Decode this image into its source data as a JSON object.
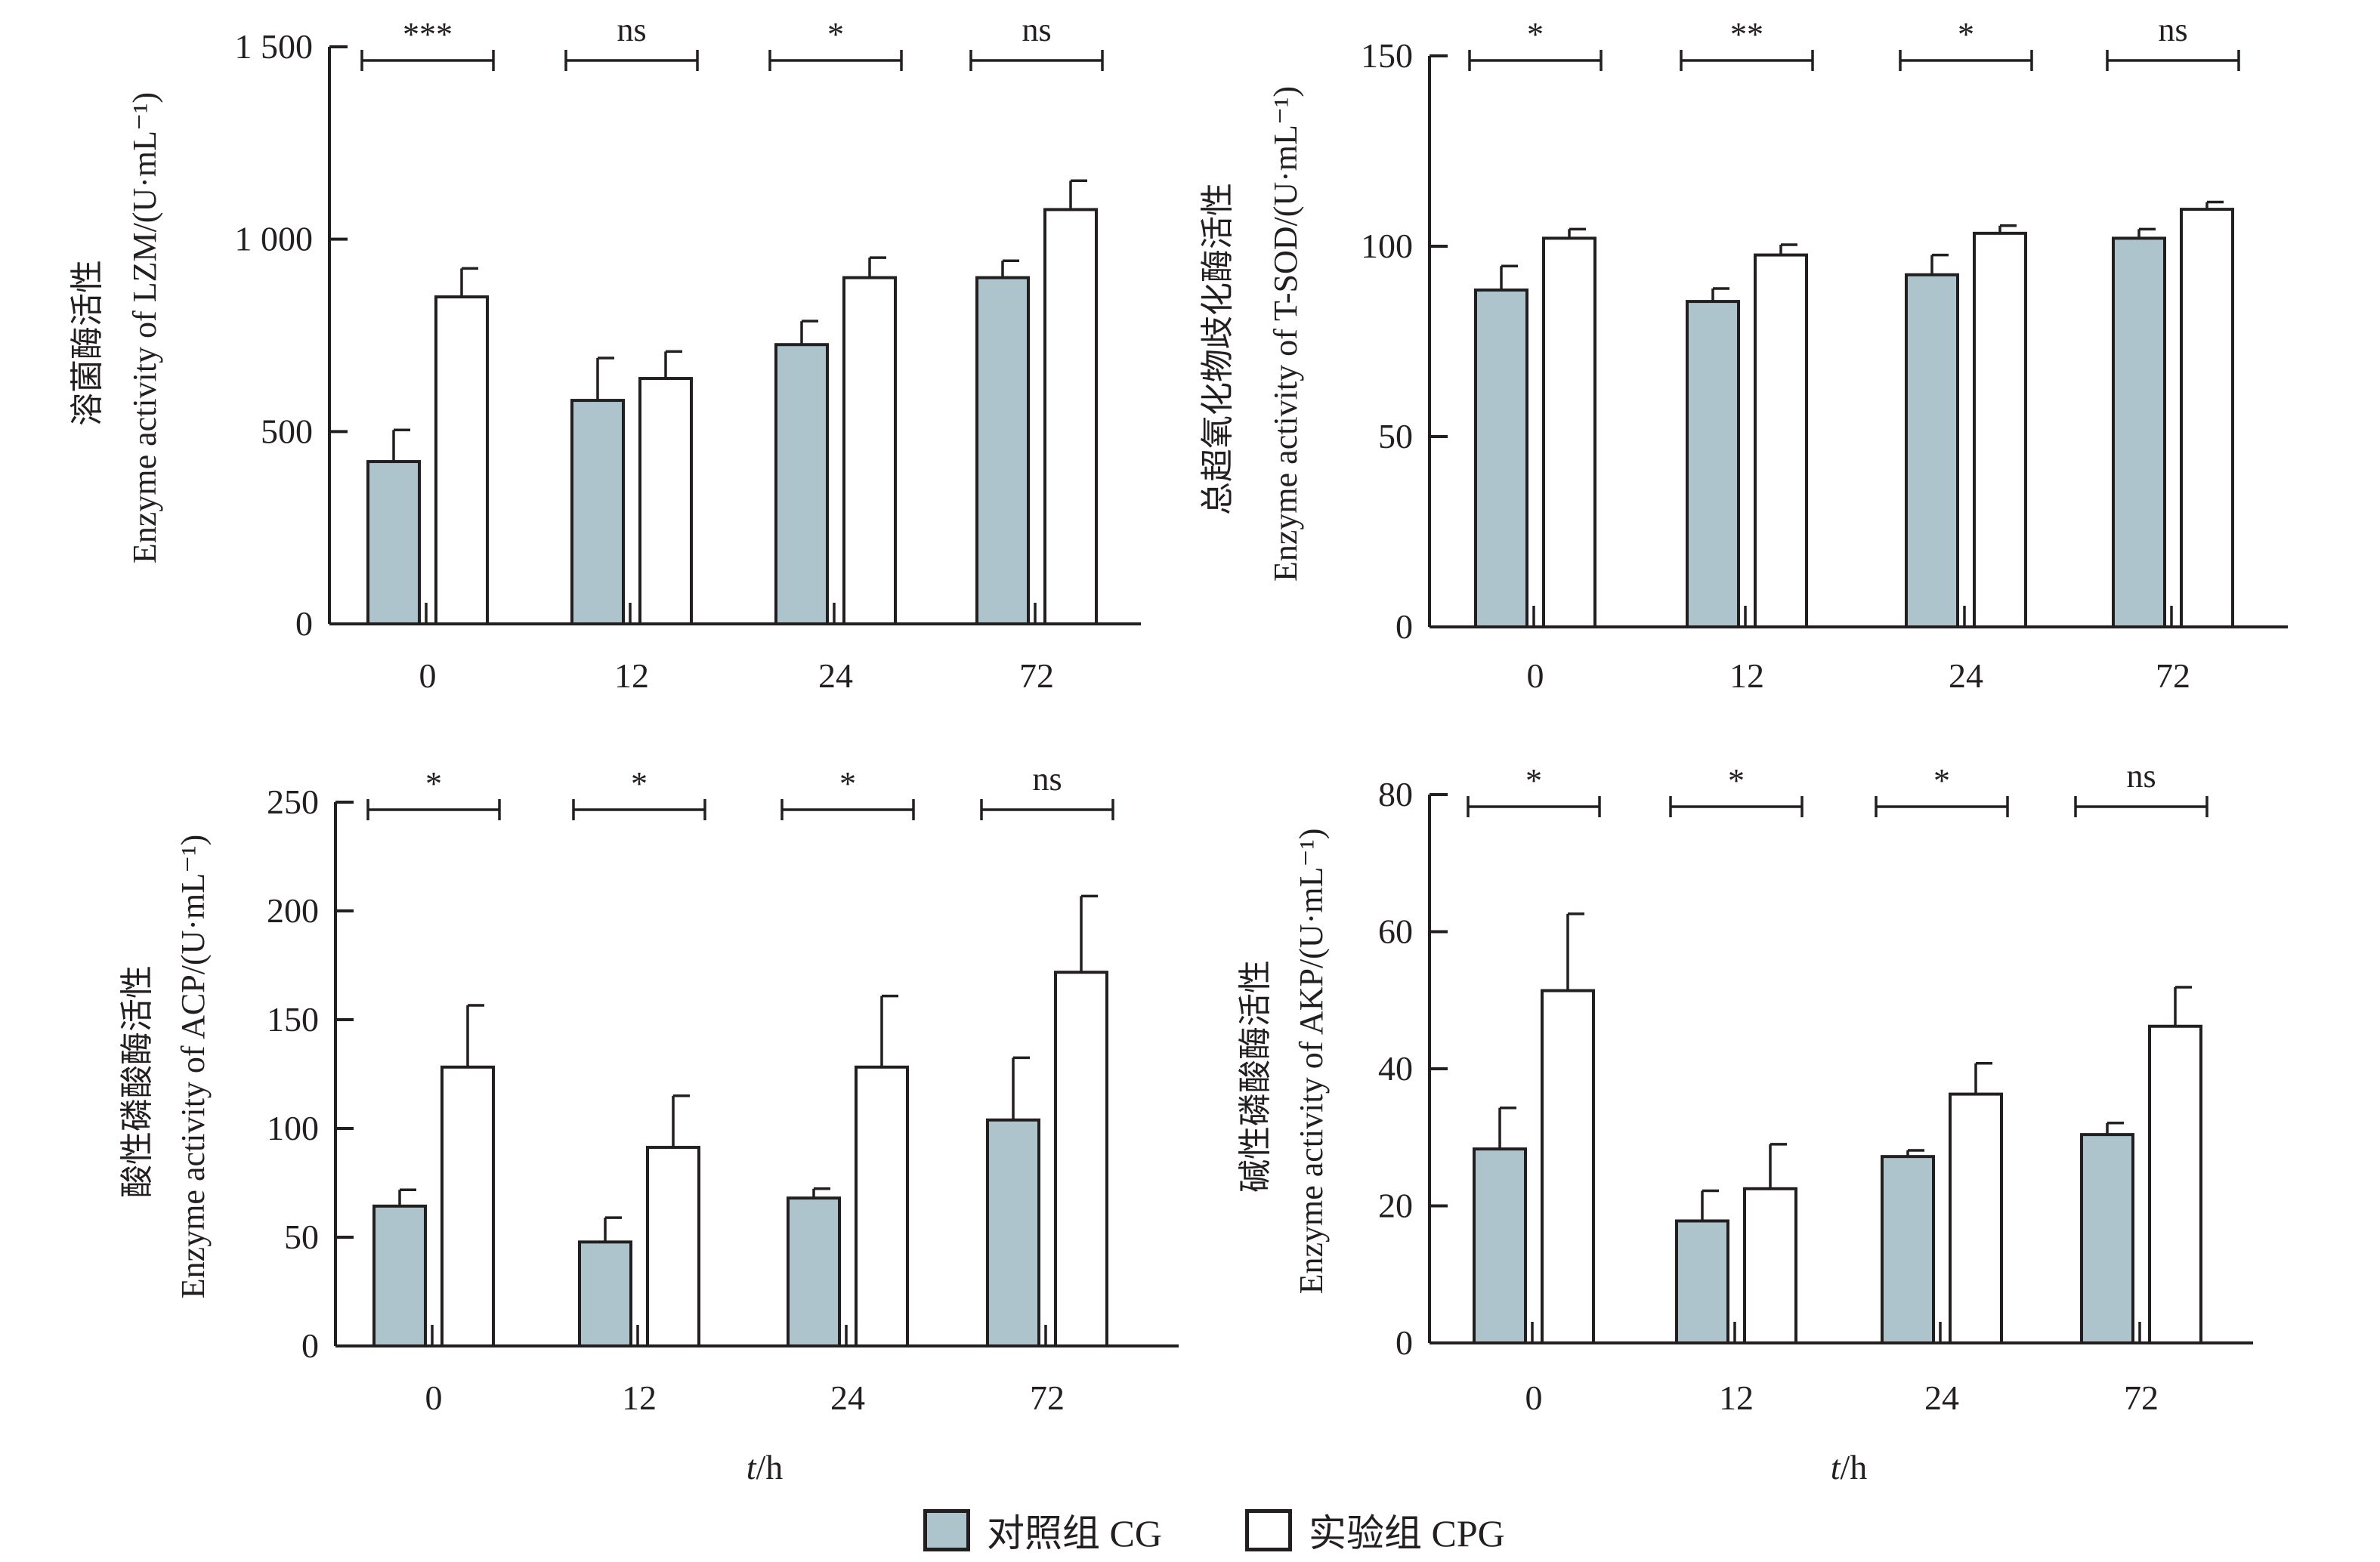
{
  "legend": {
    "cg_label": "对照组  CG",
    "cpg_label": "实验组  CPG"
  },
  "colors": {
    "cg": "#aec4cd",
    "cpg": "#ffffff",
    "ink": "#231f20"
  },
  "chart_data": [
    {
      "type": "bar",
      "title": "",
      "ylabel_zh": "溶菌酶活性",
      "ylabel": "Enzyme activity of LZM/(U·mL⁻¹)",
      "xlabel": "",
      "categories": [
        "0",
        "12",
        "24",
        "72"
      ],
      "ylim": [
        0,
        1500
      ],
      "yticks": [
        0,
        500,
        1000,
        1500
      ],
      "ytick_labels": [
        "0",
        "500",
        "1 000",
        "1 500"
      ],
      "significance": [
        "***",
        "ns",
        "*",
        "ns"
      ],
      "series": [
        {
          "name": "对照组 CG",
          "values": [
            422,
            581,
            726,
            900
          ],
          "error": [
            82,
            110,
            61,
            44
          ]
        },
        {
          "name": "实验组 CPG",
          "values": [
            850,
            638,
            900,
            1077
          ],
          "error": [
            74,
            70,
            52,
            75
          ]
        }
      ]
    },
    {
      "type": "bar",
      "title": "",
      "ylabel_zh": "总超氧化物歧化酶活性",
      "ylabel": "Enzyme activity of T-SOD/(U·mL⁻¹)",
      "xlabel": "",
      "categories": [
        "0",
        "12",
        "24",
        "72"
      ],
      "ylim": [
        0,
        150
      ],
      "yticks": [
        0,
        50,
        100,
        150
      ],
      "ytick_labels": [
        "0",
        "50",
        "100",
        "150"
      ],
      "significance": [
        "*",
        "**",
        "*",
        "ns"
      ],
      "series": [
        {
          "name": "对照组 CG",
          "values": [
            88.5,
            85.5,
            92.5,
            102.1
          ],
          "error": [
            6.3,
            3.4,
            5.2,
            2.4
          ]
        },
        {
          "name": "实验组 CPG",
          "values": [
            102.1,
            97.7,
            103.4,
            109.7
          ],
          "error": [
            2.4,
            2.7,
            2.0,
            1.9
          ]
        }
      ]
    },
    {
      "type": "bar",
      "title": "",
      "ylabel_zh": "酸性磷酸酶活性",
      "ylabel": "Enzyme activity of ACP/(U·mL⁻¹)",
      "xlabel": "t/h",
      "categories": [
        "0",
        "12",
        "24",
        "72"
      ],
      "ylim": [
        0,
        250
      ],
      "yticks": [
        0,
        50,
        100,
        150,
        200,
        250
      ],
      "ytick_labels": [
        "0",
        "50",
        "100",
        "150",
        "200",
        "250"
      ],
      "significance": [
        "*",
        "*",
        "*",
        "ns"
      ],
      "series": [
        {
          "name": "对照组 CG",
          "values": [
            64.3,
            47.8,
            68.0,
            103.9
          ],
          "error": [
            7.5,
            11.2,
            4.3,
            28.6
          ]
        },
        {
          "name": "实验组 CPG",
          "values": [
            128.2,
            91.3,
            128.2,
            171.8
          ],
          "error": [
            28.4,
            23.7,
            32.7,
            35.0
          ]
        }
      ]
    },
    {
      "type": "bar",
      "title": "",
      "ylabel_zh": "碱性磷酸酶活性",
      "ylabel": "Enzyme activity of AKP/(U·mL⁻¹)",
      "xlabel": "t/h",
      "categories": [
        "0",
        "12",
        "24",
        "72"
      ],
      "ylim": [
        0,
        80
      ],
      "yticks": [
        0,
        20,
        40,
        60,
        80
      ],
      "ytick_labels": [
        "0",
        "20",
        "40",
        "60",
        "80"
      ],
      "significance": [
        "*",
        "*",
        "*",
        "ns"
      ],
      "series": [
        {
          "name": "对照组 CG",
          "values": [
            28.3,
            17.8,
            27.2,
            30.4
          ],
          "error": [
            6.0,
            4.4,
            0.9,
            1.7
          ]
        },
        {
          "name": "实验组 CPG",
          "values": [
            51.4,
            22.5,
            36.3,
            46.2
          ],
          "error": [
            11.2,
            6.5,
            4.5,
            5.7
          ]
        }
      ]
    }
  ]
}
